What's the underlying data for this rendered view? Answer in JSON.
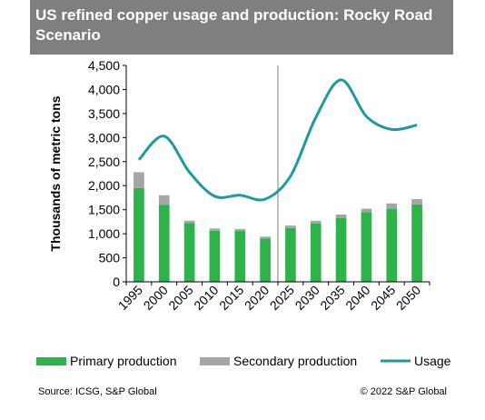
{
  "title": "US refined copper usage and production: Rocky Road Scenario",
  "source": "Source: ICSG, S&P Global",
  "copyright": "© 2022 S&P Global",
  "colors": {
    "primary": "#2db34a",
    "secondary": "#a6a6a6",
    "usage": "#1d9a9e",
    "header": "#7f7f7f"
  },
  "chart_data": {
    "type": "bar",
    "title": "US refined copper usage and production: Rocky Road Scenario",
    "ylabel": "Thousands of metric tons",
    "xlabel": "",
    "ylim": [
      0,
      4500
    ],
    "yticks": [
      0,
      500,
      1000,
      1500,
      2000,
      2500,
      3000,
      3500,
      4000,
      4500
    ],
    "ytick_labels": [
      "0",
      "500",
      "1,000",
      "1,500",
      "2,000",
      "2,500",
      "3,000",
      "3,500",
      "4,000",
      "4,500"
    ],
    "categories": [
      "1995",
      "2000",
      "2005",
      "2010",
      "2015",
      "2020",
      "2025",
      "2030",
      "2035",
      "2040",
      "2045",
      "2050"
    ],
    "stacked": true,
    "series": [
      {
        "name": "Primary production",
        "type": "bar",
        "values": [
          1950,
          1600,
          1220,
          1060,
          1060,
          900,
          1120,
          1210,
          1330,
          1450,
          1520,
          1610
        ]
      },
      {
        "name": "Secondary production",
        "type": "bar",
        "values": [
          330,
          200,
          50,
          50,
          40,
          40,
          50,
          60,
          70,
          70,
          110,
          110
        ]
      },
      {
        "name": "Usage",
        "type": "line",
        "values": [
          2540,
          3030,
          2280,
          1780,
          1800,
          1720,
          2200,
          3420,
          4200,
          3440,
          3170,
          3260
        ]
      }
    ],
    "divider_after_category": "2020",
    "legend": "bottom",
    "grid": false
  }
}
